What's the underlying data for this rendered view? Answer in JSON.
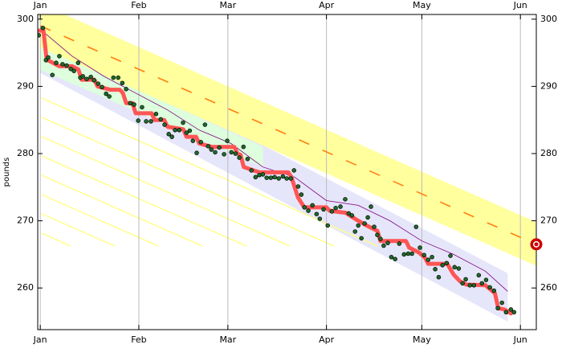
{
  "chart_data": {
    "type": "scatter",
    "ylabel": "pounds",
    "xlim": [
      -0.8,
      156
    ],
    "ylim": [
      253.8,
      300.7
    ],
    "xticks": [
      {
        "value": 0,
        "label": "Jan"
      },
      {
        "value": 31,
        "label": "Feb"
      },
      {
        "value": 59,
        "label": "Mar"
      },
      {
        "value": 90,
        "label": "Apr"
      },
      {
        "value": 120,
        "label": "May"
      },
      {
        "value": 151,
        "label": "Jun"
      }
    ],
    "yticks": [
      260,
      270,
      280,
      290,
      300
    ],
    "grid": "x",
    "series": [
      {
        "kind": "band",
        "color": "#e6e6fa",
        "x": [
          0,
          147
        ],
        "upper": [
          298.6,
          262.2
        ],
        "lower": [
          292,
          255
        ]
      },
      {
        "kind": "band",
        "color": "#ddffdd",
        "x": [
          0,
          70
        ],
        "upper": [
          296,
          281
        ],
        "lower": [
          292.5,
          278
        ]
      },
      {
        "kind": "band",
        "color": "#ffff9e",
        "x": [
          0,
          156
        ],
        "upper": [
          302.3,
          269.8
        ],
        "lower": [
          295.8,
          263.3
        ]
      },
      {
        "kind": "dashed-line",
        "color": "#ff7f0e",
        "x": [
          0,
          156
        ],
        "values": [
          299,
          266.5
        ]
      },
      {
        "kind": "line",
        "color": "#800080",
        "x": [
          0,
          10,
          20,
          30,
          40,
          50,
          60,
          70,
          80,
          90,
          100,
          110,
          120,
          130,
          140,
          147
        ],
        "values": [
          298.5,
          294.5,
          291.5,
          289,
          286.5,
          283.5,
          281.5,
          278,
          276.5,
          273,
          272.3,
          270,
          267,
          265,
          262.5,
          259.5
        ]
      },
      {
        "kind": "thick-line",
        "color": "#ff5555",
        "x": [
          -1,
          1,
          2,
          4,
          6,
          10,
          12,
          13,
          17,
          18,
          22,
          25,
          26,
          27,
          29,
          30,
          35,
          36,
          39,
          40,
          45,
          46,
          49,
          50,
          54,
          61,
          62,
          63,
          64,
          67,
          69,
          78,
          79,
          80,
          81,
          83,
          90,
          91,
          96,
          100,
          103,
          106,
          107,
          115,
          116,
          119,
          121,
          122,
          128,
          130,
          132,
          134,
          140,
          143,
          144,
          146,
          148
        ],
        "values": [
          298.3,
          298.3,
          294,
          293.5,
          293,
          293,
          292.5,
          291,
          291,
          290,
          289.5,
          289.5,
          289,
          287.5,
          287.5,
          286,
          286,
          285,
          285,
          284,
          283.6,
          282.5,
          282.5,
          281.5,
          281,
          281,
          280,
          279.8,
          278,
          277.5,
          277.2,
          277.2,
          276.5,
          275,
          273.5,
          272,
          272,
          271.5,
          271.2,
          270,
          269.2,
          268.5,
          267,
          267,
          266,
          265.3,
          264.5,
          263.6,
          263.6,
          262,
          261,
          260.5,
          260.4,
          259.2,
          257,
          256.8,
          256.2
        ]
      },
      {
        "kind": "points",
        "color": "#1f6b2a",
        "x": [
          -0.5,
          0.8,
          1.8,
          2.5,
          3.8,
          5,
          6,
          7,
          8.3,
          9.6,
          10.6,
          11.9,
          12.6,
          13.4,
          14.6,
          15.9,
          16.9,
          18.2,
          19.4,
          20.7,
          21.7,
          23,
          24.5,
          25.8,
          27,
          28.3,
          29.5,
          30.8,
          32,
          33.3,
          34.8,
          36.4,
          37.9,
          39.1,
          40.4,
          41.4,
          42.4,
          43.7,
          44.9,
          46,
          47,
          48,
          49.2,
          50.5,
          51.8,
          52.8,
          53.8,
          55,
          56.3,
          57.8,
          58.8,
          60.1,
          61.4,
          62.6,
          63.9,
          65.2,
          66.4,
          67.7,
          68.9,
          70,
          71.2,
          72.5,
          73.7,
          75,
          76.3,
          77.5,
          78.8,
          79.8,
          81.1,
          82.1,
          83.1,
          84.3,
          85.6,
          86.9,
          87.9,
          89.1,
          90.4,
          91.7,
          92.9,
          94.4,
          95.9,
          97,
          98,
          99,
          100,
          101,
          102,
          103,
          104,
          105,
          106,
          107,
          108,
          109.3,
          110.4,
          111.6,
          112.9,
          114.4,
          115.7,
          116.9,
          118.2,
          119.4,
          120.7,
          122,
          123.2,
          124.2,
          125.3,
          126.5,
          127.8,
          129,
          130.3,
          131.6,
          132.8,
          133.8,
          135.1,
          136.4,
          137.9,
          138.9,
          140.2,
          141.4,
          142.7,
          143.9,
          145.2,
          146.5,
          148,
          149
        ],
        "values": [
          297.6,
          298.7,
          293.9,
          294.3,
          291.7,
          293.5,
          294.5,
          293.3,
          293.1,
          292.6,
          292.3,
          293.5,
          291.3,
          291.5,
          291.1,
          291.4,
          290.9,
          290.4,
          289.9,
          288.9,
          288.5,
          291.3,
          291.3,
          290.5,
          289.6,
          287.5,
          287.3,
          284.9,
          286.9,
          284.8,
          284.8,
          285.9,
          285.1,
          284.3,
          282.9,
          282.5,
          283.5,
          283.5,
          284.6,
          283.1,
          283.4,
          281.9,
          280.1,
          281.7,
          284.3,
          281.1,
          280.6,
          280.2,
          280.9,
          279.9,
          281.9,
          280.2,
          280,
          279.4,
          281,
          279.2,
          277.5,
          276.5,
          276.8,
          276.9,
          276.4,
          276.4,
          276.5,
          276.3,
          276.6,
          276.3,
          276.3,
          277.5,
          275.1,
          273.9,
          272,
          271.5,
          272.3,
          271,
          270.3,
          271.7,
          269.3,
          271.4,
          271.9,
          272.1,
          273.2,
          271.1,
          270.8,
          268.4,
          269.3,
          267.4,
          269.6,
          270.5,
          272.1,
          269.1,
          267.9,
          267.3,
          266.3,
          266.7,
          264.6,
          264.3,
          266.6,
          265,
          265.1,
          265.1,
          269.1,
          266,
          264.9,
          264.2,
          264.6,
          262.8,
          261.6,
          263.4,
          263.7,
          264.8,
          263.1,
          262.9,
          260.7,
          261.3,
          260.4,
          260.4,
          261.9,
          260.7,
          261.2,
          260.1,
          259.6,
          257,
          257.8,
          256.4,
          256.8,
          256.4
        ]
      },
      {
        "kind": "target",
        "color": "#cc0000",
        "x": [
          156
        ],
        "values": [
          266.5
        ]
      }
    ]
  }
}
